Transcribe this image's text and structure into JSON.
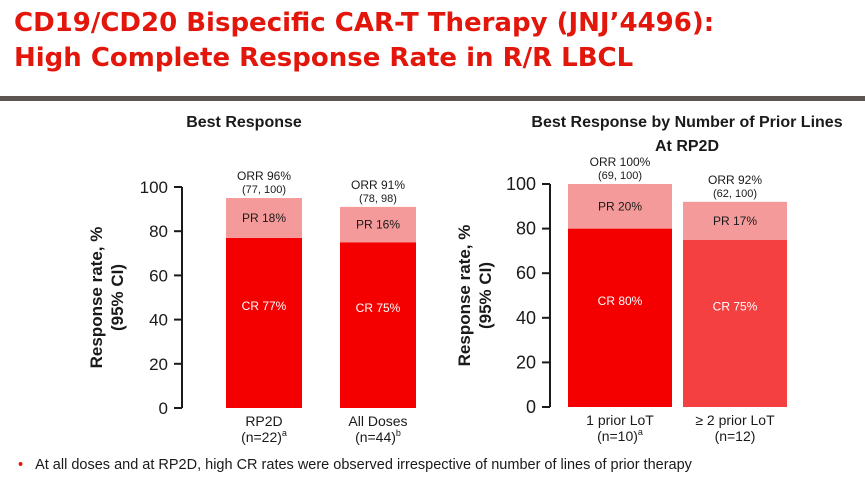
{
  "title_line1": "CD19/CD20 Bispecific CAR-T Therapy (JNJ’4496):",
  "title_line2": "High Complete Response Rate in R/R LBCL",
  "footnote": "At all doses and at RP2D, high CR rates were observed irrespective of number of lines of prior therapy",
  "colors": {
    "title": "#e3160b",
    "cr_dark": "#f50000",
    "pr_light": "#f59a9a",
    "cr_lighter": "#f44040",
    "divider": "#5c5552"
  },
  "chart_data": [
    {
      "type": "bar",
      "stacked": true,
      "title": "Best Response",
      "ylabel": "Response rate, % (95% CI)",
      "ylabel_line1": "Response rate, %",
      "ylabel_line2": "(95% CI)",
      "ylim": [
        0,
        100
      ],
      "yticks": [
        "0",
        "20",
        "40",
        "60",
        "80",
        "100"
      ],
      "categories": [
        {
          "label": "RP2D",
          "sub": "(n=22)",
          "sup": "a"
        },
        {
          "label": "All Doses",
          "sub": "(n=44)",
          "sup": "b"
        }
      ],
      "series": [
        {
          "name": "CR",
          "values": [
            77,
            75
          ],
          "labels": [
            "CR 77%",
            "CR 75%"
          ]
        },
        {
          "name": "PR",
          "values": [
            18,
            16
          ],
          "labels": [
            "PR 18%",
            "PR 16%"
          ]
        }
      ],
      "orr": [
        {
          "label": "ORR 96%",
          "ci": "(77, 100)",
          "value": 96
        },
        {
          "label": "ORR 91%",
          "ci": "(78, 98)",
          "value": 91
        }
      ]
    },
    {
      "type": "bar",
      "stacked": true,
      "title": "Best Response by Number of Prior Lines",
      "subtitle": "At RP2D",
      "ylabel": "Response rate, % (95% CI)",
      "ylabel_line1": "Response rate, %",
      "ylabel_line2": "(95% CI)",
      "ylim": [
        0,
        100
      ],
      "yticks": [
        "0",
        "20",
        "40",
        "60",
        "80",
        "100"
      ],
      "categories": [
        {
          "label": "1 prior LoT",
          "sub": "(n=10)",
          "sup": "a"
        },
        {
          "label": "≥ 2 prior LoT",
          "sub": "(n=12)",
          "sup": ""
        }
      ],
      "series": [
        {
          "name": "CR",
          "values": [
            80,
            75
          ],
          "labels": [
            "CR 80%",
            "CR 75%"
          ]
        },
        {
          "name": "PR",
          "values": [
            20,
            17
          ],
          "labels": [
            "PR 20%",
            "PR 17%"
          ]
        }
      ],
      "orr": [
        {
          "label": "ORR 100%",
          "ci": "(69, 100)",
          "value": 100
        },
        {
          "label": "ORR 92%",
          "ci": "(62, 100)",
          "value": 92
        }
      ]
    }
  ]
}
